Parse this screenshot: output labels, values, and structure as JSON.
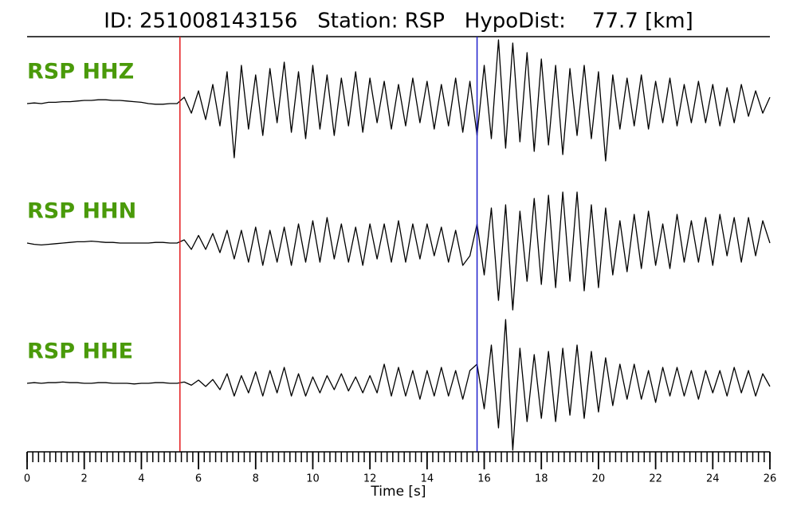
{
  "chart_data": {
    "type": "waveform",
    "title": "ID: 251008143156   Station: RSP   HypoDist:    77.7 [km]",
    "xlabel": "Time [s]",
    "xlim": [
      0,
      26
    ],
    "xticks": [
      0,
      2,
      4,
      6,
      8,
      10,
      12,
      14,
      16,
      18,
      20,
      22,
      24,
      26
    ],
    "xminor_step": 0.2,
    "ylim": [
      -1.1,
      1.1
    ],
    "label_color": "#4a9a0a",
    "vlines": [
      {
        "x": 5.35,
        "color": "#e41a1c"
      },
      {
        "x": 15.75,
        "color": "#1f1fcc"
      }
    ],
    "x": [
      0,
      0.25,
      0.5,
      0.75,
      1,
      1.25,
      1.5,
      1.75,
      2,
      2.25,
      2.5,
      2.75,
      3,
      3.25,
      3.5,
      3.75,
      4,
      4.25,
      4.5,
      4.75,
      5,
      5.25,
      5.5,
      5.75,
      6,
      6.25,
      6.5,
      6.75,
      7,
      7.25,
      7.5,
      7.75,
      8,
      8.25,
      8.5,
      8.75,
      9,
      9.25,
      9.5,
      9.75,
      10,
      10.25,
      10.5,
      10.75,
      11,
      11.25,
      11.5,
      11.75,
      12,
      12.25,
      12.5,
      12.75,
      13,
      13.25,
      13.5,
      13.75,
      14,
      14.25,
      14.5,
      14.75,
      15,
      15.25,
      15.5,
      15.75,
      16,
      16.25,
      16.5,
      16.75,
      17,
      17.25,
      17.5,
      17.75,
      18,
      18.25,
      18.5,
      18.75,
      19,
      19.25,
      19.5,
      19.75,
      20,
      20.25,
      20.5,
      20.75,
      21,
      21.25,
      21.5,
      21.75,
      22,
      22.25,
      22.5,
      22.75,
      23,
      23.25,
      23.5,
      23.75,
      24,
      24.25,
      24.5,
      24.75,
      25,
      25.25,
      25.5,
      25.75,
      26
    ],
    "series": [
      {
        "name": "RSP HHZ",
        "color": "#000000",
        "values": [
          0,
          0.01,
          0.0,
          0.02,
          0.02,
          0.03,
          0.03,
          0.04,
          0.05,
          0.05,
          0.06,
          0.06,
          0.05,
          0.05,
          0.04,
          0.03,
          0.02,
          0.0,
          -0.01,
          -0.01,
          0.0,
          0.0,
          0.1,
          -0.15,
          0.2,
          -0.25,
          0.3,
          -0.35,
          0.5,
          -0.85,
          0.6,
          -0.4,
          0.45,
          -0.5,
          0.55,
          -0.3,
          0.65,
          -0.45,
          0.5,
          -0.55,
          0.6,
          -0.4,
          0.45,
          -0.5,
          0.4,
          -0.35,
          0.5,
          -0.45,
          0.4,
          -0.3,
          0.35,
          -0.4,
          0.3,
          -0.35,
          0.4,
          -0.3,
          0.35,
          -0.4,
          0.3,
          -0.35,
          0.4,
          -0.45,
          0.35,
          -0.5,
          0.6,
          -0.55,
          1.0,
          -0.7,
          0.95,
          -0.6,
          0.8,
          -0.75,
          0.7,
          -0.65,
          0.6,
          -0.8,
          0.55,
          -0.5,
          0.6,
          -0.55,
          0.5,
          -0.9,
          0.45,
          -0.4,
          0.4,
          -0.35,
          0.45,
          -0.4,
          0.35,
          -0.3,
          0.4,
          -0.35,
          0.3,
          -0.3,
          0.35,
          -0.3,
          0.3,
          -0.35,
          0.25,
          -0.3,
          0.3,
          -0.2,
          0.2,
          -0.15,
          0.1
        ]
      },
      {
        "name": "RSP HHN",
        "color": "#000000",
        "values": [
          0,
          -0.02,
          -0.03,
          -0.02,
          -0.01,
          0,
          0.01,
          0.02,
          0.02,
          0.03,
          0.02,
          0.01,
          0.01,
          0,
          0,
          0,
          0,
          0,
          0.01,
          0.01,
          0,
          0,
          0.05,
          -0.1,
          0.12,
          -0.1,
          0.15,
          -0.15,
          0.2,
          -0.25,
          0.2,
          -0.3,
          0.25,
          -0.35,
          0.2,
          -0.3,
          0.25,
          -0.35,
          0.3,
          -0.3,
          0.35,
          -0.3,
          0.4,
          -0.25,
          0.3,
          -0.3,
          0.25,
          -0.35,
          0.3,
          -0.25,
          0.3,
          -0.3,
          0.35,
          -0.3,
          0.3,
          -0.25,
          0.3,
          -0.2,
          0.25,
          -0.3,
          0.2,
          -0.35,
          -0.2,
          0.3,
          -0.5,
          0.55,
          -0.9,
          0.6,
          -1.05,
          0.5,
          -0.6,
          0.7,
          -0.65,
          0.75,
          -0.7,
          0.8,
          -0.6,
          0.8,
          -0.75,
          0.6,
          -0.7,
          0.55,
          -0.5,
          0.35,
          -0.45,
          0.45,
          -0.4,
          0.5,
          -0.35,
          0.3,
          -0.4,
          0.45,
          -0.3,
          0.35,
          -0.3,
          0.4,
          -0.35,
          0.45,
          -0.2,
          0.4,
          -0.3,
          0.4,
          -0.2,
          0.35,
          0.0
        ]
      },
      {
        "name": "RSP HHE",
        "color": "#000000",
        "values": [
          0,
          0.01,
          0.0,
          0.01,
          0.01,
          0.02,
          0.01,
          0.01,
          0,
          0,
          0.01,
          0.01,
          0,
          0,
          0,
          -0.01,
          0,
          0,
          0.01,
          0.01,
          0,
          0,
          0.02,
          -0.03,
          0.05,
          -0.05,
          0.06,
          -0.1,
          0.15,
          -0.2,
          0.12,
          -0.15,
          0.18,
          -0.2,
          0.2,
          -0.15,
          0.25,
          -0.2,
          0.15,
          -0.2,
          0.1,
          -0.15,
          0.12,
          -0.1,
          0.15,
          -0.12,
          0.1,
          -0.15,
          0.12,
          -0.15,
          0.3,
          -0.2,
          0.25,
          -0.2,
          0.2,
          -0.25,
          0.2,
          -0.2,
          0.25,
          -0.2,
          0.2,
          -0.25,
          0.2,
          0.3,
          -0.4,
          0.6,
          -0.7,
          1.0,
          -1.05,
          0.55,
          -0.6,
          0.45,
          -0.55,
          0.5,
          -0.6,
          0.55,
          -0.5,
          0.6,
          -0.55,
          0.5,
          -0.45,
          0.4,
          -0.35,
          0.3,
          -0.25,
          0.3,
          -0.25,
          0.2,
          -0.3,
          0.25,
          -0.2,
          0.25,
          -0.2,
          0.2,
          -0.25,
          0.2,
          -0.15,
          0.2,
          -0.2,
          0.25,
          -0.15,
          0.2,
          -0.2,
          0.15,
          -0.05
        ]
      }
    ]
  }
}
